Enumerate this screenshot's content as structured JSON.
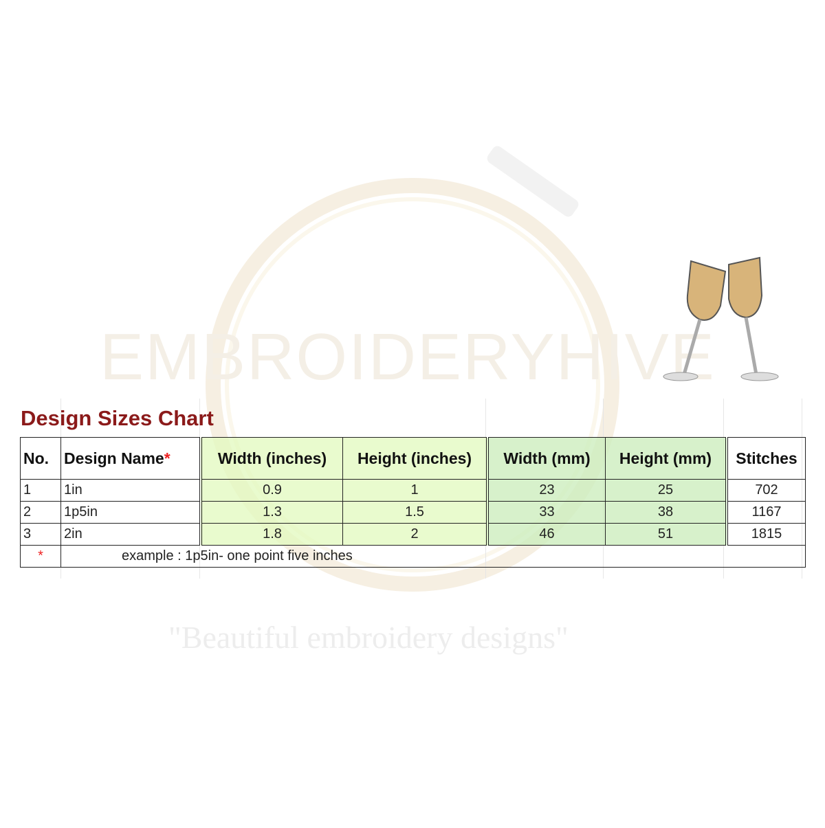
{
  "watermark": {
    "brand": "EMBROIDERYHIVE",
    "tagline": "\"Beautiful embroidery designs\""
  },
  "title": "Design Sizes Chart",
  "table": {
    "headers": [
      "No.",
      "Design Name",
      "Width (inches)",
      "Height (inches)",
      "Width (mm)",
      "Height (mm)",
      "Stitches"
    ],
    "header_asterisk": "*",
    "rows": [
      [
        "1",
        "1in",
        "0.9",
        "1",
        "23",
        "25",
        "702"
      ],
      [
        "2",
        "1p5in",
        "1.3",
        "1.5",
        "33",
        "38",
        "1167"
      ],
      [
        "3",
        "2in",
        "1.8",
        "2",
        "46",
        "51",
        "1815"
      ]
    ],
    "footnote_marker": "*",
    "footnote": "example :  1p5in- one point five inches"
  },
  "colors": {
    "title": "#8b1a1a",
    "inches_fill": "#e2fabe",
    "mm_fill": "#cdeebe",
    "asterisk": "#e22222"
  }
}
